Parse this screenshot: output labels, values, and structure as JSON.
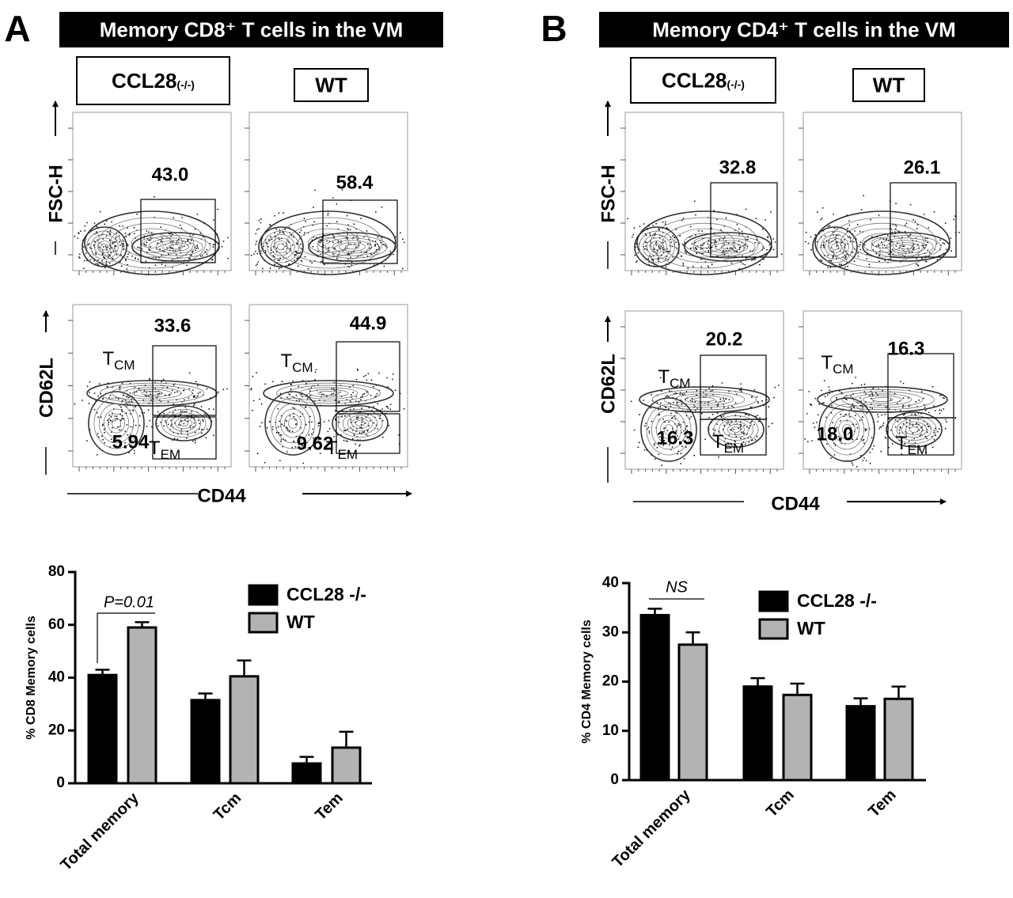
{
  "panels": [
    {
      "letter": "A",
      "title": "Memory CD8⁺ T cells in the VM",
      "groups": [
        {
          "label": "CCL28",
          "sup": "(-/-)"
        },
        {
          "label": "WT"
        }
      ],
      "row_labels": [
        "FSC-H",
        "CD62L"
      ],
      "x_label": "CD44",
      "subset_labels": {
        "tcm": {
          "main": "T",
          "sub": "CM"
        },
        "tem": {
          "main": "T",
          "sub": "EM"
        }
      },
      "plots": [
        [
          {
            "gate": "43.0"
          },
          {
            "gate": "58.4"
          }
        ],
        [
          {
            "tcm": "33.6",
            "tem": "5.94"
          },
          {
            "tcm": "44.9",
            "tem": "9.62"
          }
        ]
      ]
    },
    {
      "letter": "B",
      "title": "Memory CD4⁺ T cells in the  VM",
      "groups": [
        {
          "label": "CCL28",
          "sup": "(-/-)"
        },
        {
          "label": "WT"
        }
      ],
      "row_labels": [
        "FSC-H",
        "CD62L"
      ],
      "x_label": "CD44",
      "subset_labels": {
        "tcm": {
          "main": "T",
          "sub": "CM"
        },
        "tem": {
          "main": "T",
          "sub": "EM"
        }
      },
      "plots": [
        [
          {
            "gate": "32.8"
          },
          {
            "gate": "26.1"
          }
        ],
        [
          {
            "tcm": "20.2",
            "tem": "16.3"
          },
          {
            "tcm": "16.3",
            "tem": "18.0"
          }
        ]
      ]
    }
  ],
  "chart_data": [
    {
      "type": "bar",
      "y_label": "% CD8 Memory cells",
      "annotation": "P=0.01",
      "categories": [
        "Total memory",
        "Tcm",
        "Tem"
      ],
      "series": [
        {
          "name": "CCL28 -/-",
          "color": "#000000",
          "values": [
            41,
            31.5,
            7.5
          ],
          "errors": [
            2,
            2.5,
            2.5
          ]
        },
        {
          "name": "WT",
          "color": "#b3b3b3",
          "values": [
            59,
            40.5,
            13.5
          ],
          "errors": [
            2,
            6,
            6
          ]
        }
      ],
      "ylim": [
        0,
        80
      ],
      "yticks": [
        0,
        20,
        40,
        60,
        80
      ]
    },
    {
      "type": "bar",
      "y_label": "% CD4 Memory cells",
      "annotation": "NS",
      "categories": [
        "Total memory",
        "Tcm",
        "Tem"
      ],
      "series": [
        {
          "name": "CCL28 -/-",
          "color": "#000000",
          "values": [
            33.5,
            19,
            15
          ],
          "errors": [
            1.3,
            1.7,
            1.6
          ]
        },
        {
          "name": "WT",
          "color": "#b3b3b3",
          "values": [
            27.5,
            17.3,
            16.5
          ],
          "errors": [
            2.5,
            2.3,
            2.5
          ]
        }
      ],
      "ylim": [
        0,
        40
      ],
      "yticks": [
        0,
        10,
        20,
        30,
        40
      ]
    }
  ]
}
